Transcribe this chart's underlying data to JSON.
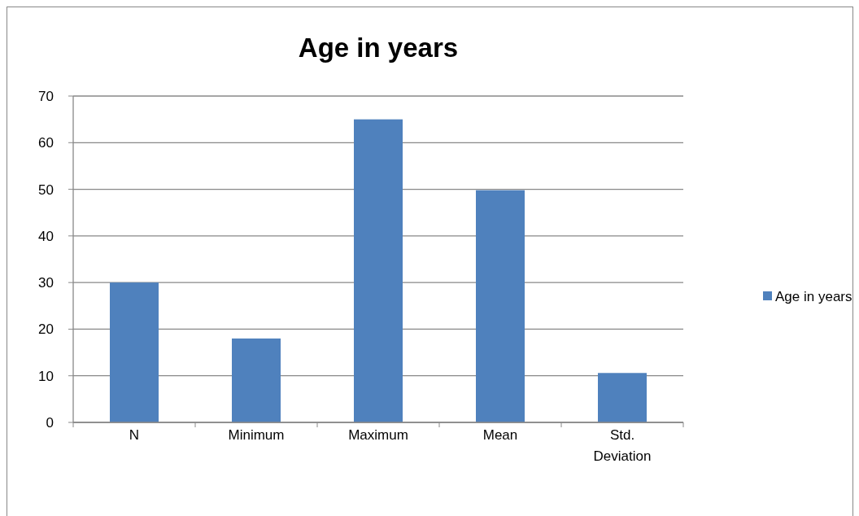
{
  "chart_data": {
    "type": "bar",
    "title": "Age in years",
    "categories": [
      "N",
      "Minimum",
      "Maximum",
      "Mean",
      "Std. Deviation"
    ],
    "series": [
      {
        "name": "Age in years",
        "color": "#4f81bd",
        "values": [
          30,
          18,
          65,
          49.8,
          10.6
        ]
      }
    ],
    "ylim": [
      0,
      70
    ],
    "yticks": [
      0,
      10,
      20,
      30,
      40,
      50,
      60,
      70
    ],
    "grid": "y",
    "legend": "right"
  }
}
